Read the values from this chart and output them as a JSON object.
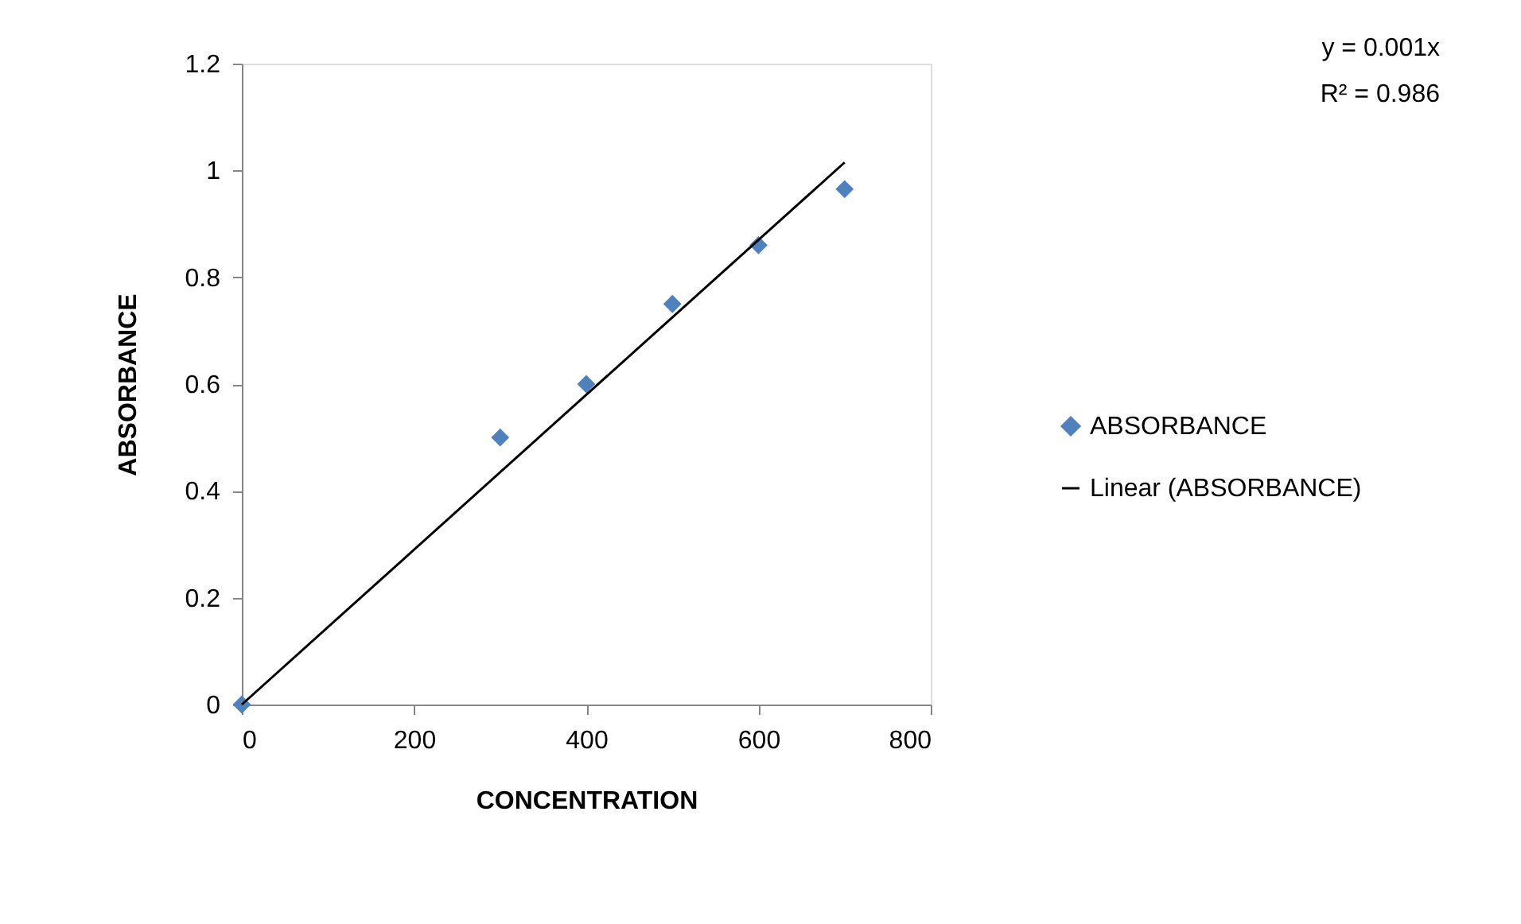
{
  "chart_data": {
    "type": "scatter",
    "xlabel": "CONCENTRATION",
    "ylabel": "ABSORBANCE",
    "xlim": [
      0,
      800
    ],
    "xticks": [
      0,
      200,
      400,
      600,
      800
    ],
    "ylim": [
      0,
      1.2
    ],
    "yticks": [
      0,
      0.2,
      0.4,
      0.6,
      0.8,
      1,
      1.2
    ],
    "grid": false,
    "legend": "right",
    "annotations": [
      "y = 0.001x",
      "R² = 0.986"
    ],
    "series": [
      {
        "name": "ABSORBANCE",
        "marker": "diamond",
        "color": "#4f81bd",
        "x": [
          0,
          300,
          400,
          500,
          600,
          700
        ],
        "values": [
          0,
          0.5,
          0.6,
          0.75,
          0.86,
          0.965
        ]
      },
      {
        "name": "Linear (ABSORBANCE)",
        "type": "line",
        "marker": "none",
        "color": "#000000",
        "x": [
          0,
          700
        ],
        "values": [
          0,
          1.015
        ]
      }
    ]
  }
}
